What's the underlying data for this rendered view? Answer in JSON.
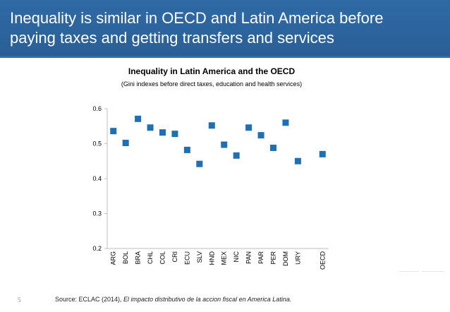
{
  "slide": {
    "title": "Inequality is similar in OECD and Latin America before paying taxes and getting transfers and services",
    "page_number": "5",
    "source_prefix": "Source: ECLAC (2014), ",
    "source_title": "El impacto distributivo de la accion fiscal en America Latina."
  },
  "colors": {
    "banner": "#2a5f96",
    "marker": "#1f6fb4",
    "axis": "#bfbfbf"
  },
  "chart_data": {
    "type": "scatter",
    "title": "Inequality in Latin America and the OECD",
    "subtitle": "(Gini indexes before direct taxes, education and health services)",
    "xlabel": "",
    "ylabel": "",
    "ylim": [
      0.2,
      0.6
    ],
    "yticks": [
      "0.2",
      "0.3",
      "0.4",
      "0.5",
      "0.6"
    ],
    "grid": false,
    "categories": [
      "ARG",
      "BOL",
      "BRA",
      "CHL",
      "COL",
      "CRI",
      "ECU",
      "SLV",
      "HND",
      "MEX",
      "NIC",
      "PAN",
      "PAR",
      "PER",
      "DOM",
      "URY",
      "",
      "OECD"
    ],
    "values": [
      0.536,
      0.502,
      0.571,
      0.546,
      0.532,
      0.528,
      0.482,
      0.442,
      0.552,
      0.497,
      0.466,
      0.546,
      0.524,
      0.488,
      0.56,
      0.45,
      null,
      0.47
    ]
  }
}
